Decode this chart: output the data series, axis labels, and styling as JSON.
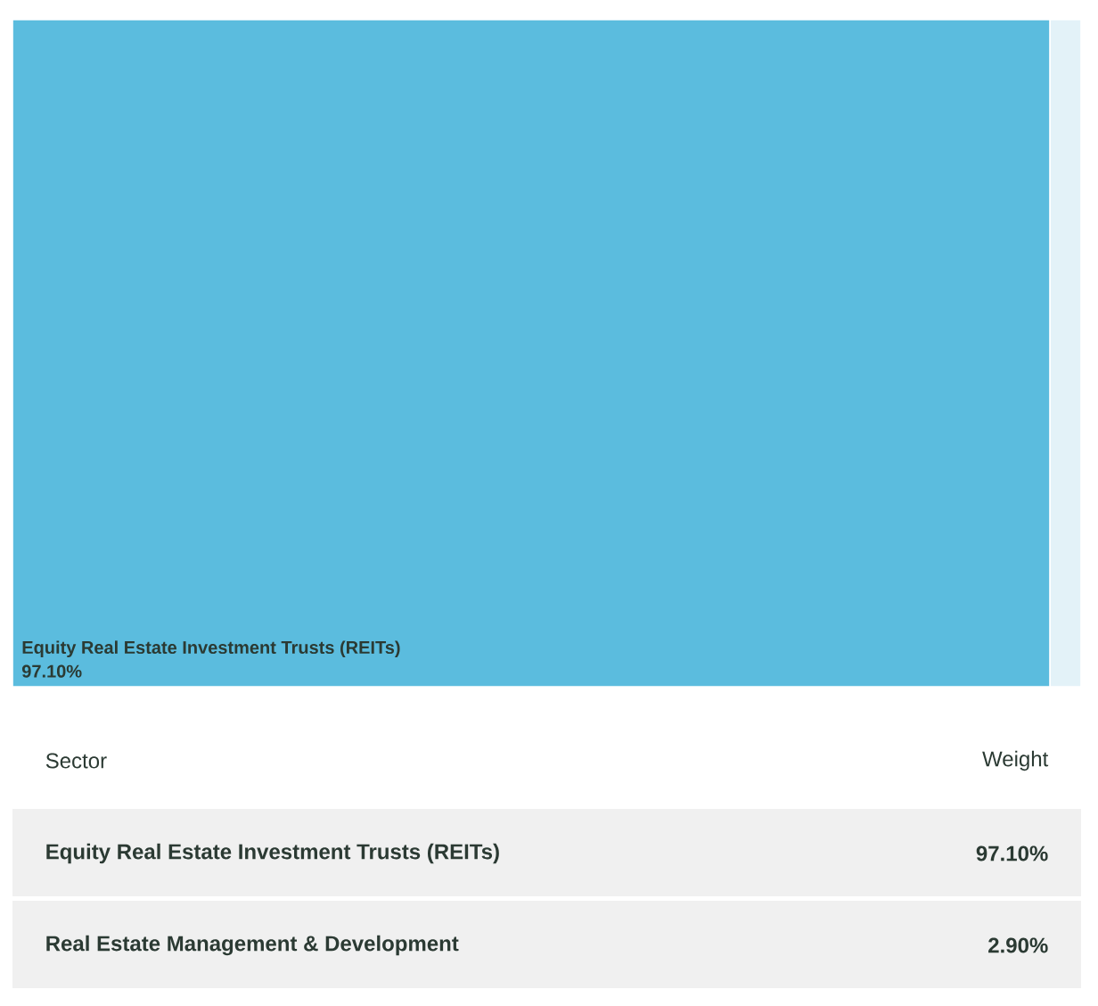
{
  "chart_data": {
    "type": "other",
    "categories": [
      "Equity Real Estate Investment Trusts (REITs)",
      "Real Estate Management & Development"
    ],
    "values": [
      97.1,
      2.9
    ],
    "colors": [
      "#5bbcde",
      "#e3f2f8"
    ],
    "value_labels": [
      "97.10%",
      "2.90%"
    ],
    "data_labels": true,
    "xlabel": "Sector",
    "ylabel": "Weight"
  }
}
